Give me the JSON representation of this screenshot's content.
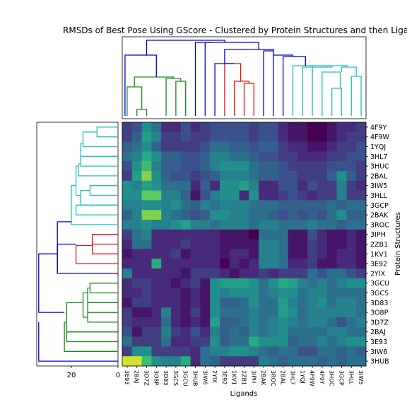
{
  "chart_data": {
    "type": "heatmap",
    "title": "RMSDs of Best Pose Using GScore - Clustered by Protein Structures and then Ligands",
    "xlabel": "Ligands",
    "ylabel": "Protein Structures",
    "x_labels": [
      "3E93",
      "2BAJ",
      "3D7Z",
      "3O8P",
      "3D83",
      "3GCS",
      "3GCU",
      "3HUB",
      "3IW6",
      "2YIX",
      "3E92",
      "1KV1",
      "2ZB1",
      "3IPH",
      "2BAK",
      "3ROC",
      "2BAL",
      "3HL7",
      "1YQJ",
      "4F9W",
      "4F9Y",
      "3HUC",
      "3GCP",
      "3HLL",
      "3IW5"
    ],
    "y_labels": [
      "4F9Y",
      "4F9W",
      "1YQJ",
      "3HL7",
      "3HUC",
      "2BAL",
      "3IW5",
      "3HLL",
      "3GCP",
      "2BAK",
      "3ROC",
      "3IPH",
      "2ZB1",
      "1KV1",
      "3E92",
      "2YIX",
      "3GCU",
      "3GCS",
      "3D83",
      "3O8P",
      "3D7Z",
      "2BAJ",
      "3E93",
      "3IW6",
      "3HUB"
    ],
    "row_dendrogram_axis": {
      "ticks": [
        20,
        0
      ]
    },
    "values": [
      [
        3,
        4,
        8,
        6,
        2,
        2,
        4,
        2,
        3,
        4,
        4,
        4,
        4,
        3,
        4,
        4,
        2,
        1,
        1,
        0,
        0,
        1,
        2,
        2,
        3
      ],
      [
        3,
        5,
        9,
        7,
        3,
        3,
        4,
        3,
        3,
        4,
        4,
        4,
        4,
        3,
        4,
        4,
        2,
        1,
        1,
        0,
        0,
        1,
        2,
        3,
        3
      ],
      [
        5,
        6,
        8,
        5,
        3,
        3,
        3,
        3,
        4,
        6,
        6,
        5,
        5,
        4,
        5,
        5,
        3,
        2,
        2,
        1,
        1,
        2,
        3,
        3,
        4
      ],
      [
        6,
        7,
        10,
        8,
        5,
        5,
        4,
        4,
        5,
        7,
        7,
        6,
        6,
        5,
        4,
        4,
        3,
        3,
        2,
        2,
        2,
        3,
        3,
        4,
        4
      ],
      [
        4,
        8,
        11,
        7,
        5,
        5,
        4,
        4,
        5,
        7,
        8,
        8,
        8,
        6,
        5,
        5,
        4,
        3,
        3,
        3,
        3,
        4,
        4,
        4,
        3
      ],
      [
        3,
        9,
        13,
        8,
        5,
        4,
        4,
        3,
        4,
        5,
        7,
        7,
        7,
        6,
        5,
        5,
        4,
        4,
        3,
        3,
        3,
        5,
        8,
        5,
        3
      ],
      [
        8,
        7,
        9,
        8,
        6,
        6,
        6,
        2,
        5,
        2,
        8,
        8,
        9,
        7,
        2,
        2,
        4,
        4,
        2,
        4,
        3,
        3,
        7,
        3,
        2
      ],
      [
        8,
        8,
        12,
        12,
        7,
        7,
        5,
        1,
        4,
        7,
        8,
        8,
        2,
        8,
        2,
        2,
        3,
        4,
        3,
        2,
        3,
        3,
        7,
        3,
        3
      ],
      [
        7,
        7,
        8,
        8,
        7,
        8,
        6,
        5,
        7,
        6,
        7,
        7,
        7,
        6,
        6,
        6,
        5,
        5,
        5,
        5,
        5,
        6,
        5,
        6,
        6
      ],
      [
        5,
        7,
        13,
        13,
        7,
        6,
        5,
        4,
        5,
        8,
        8,
        7,
        7,
        6,
        6,
        5,
        4,
        5,
        4,
        5,
        4,
        6,
        8,
        5,
        5
      ],
      [
        7,
        7,
        8,
        7,
        7,
        8,
        9,
        7,
        7,
        6,
        7,
        7,
        7,
        6,
        7,
        7,
        6,
        6,
        6,
        7,
        6,
        6,
        5,
        6,
        6
      ],
      [
        3,
        6,
        7,
        2,
        2,
        2,
        2,
        2,
        2,
        2,
        1,
        1,
        1,
        0,
        6,
        6,
        6,
        1,
        1,
        4,
        2,
        1,
        1,
        2,
        1
      ],
      [
        2,
        6,
        6,
        2,
        2,
        2,
        3,
        2,
        2,
        2,
        1,
        1,
        1,
        1,
        7,
        7,
        6,
        1,
        1,
        3,
        2,
        1,
        1,
        2,
        1
      ],
      [
        1,
        2,
        2,
        2,
        2,
        3,
        1,
        2,
        2,
        2,
        1,
        2,
        2,
        1,
        7,
        7,
        6,
        1,
        1,
        3,
        2,
        1,
        2,
        2,
        1
      ],
      [
        2,
        2,
        2,
        10,
        2,
        2,
        2,
        2,
        2,
        2,
        0,
        2,
        1,
        2,
        7,
        7,
        6,
        2,
        2,
        3,
        1,
        1,
        2,
        2,
        1
      ],
      [
        7,
        2,
        2,
        2,
        2,
        2,
        1,
        3,
        3,
        3,
        2,
        1,
        2,
        2,
        3,
        2,
        3,
        3,
        3,
        6,
        4,
        6,
        6,
        4,
        3
      ],
      [
        2,
        3,
        3,
        2,
        2,
        1,
        2,
        3,
        1,
        8,
        9,
        9,
        9,
        8,
        6,
        8,
        10,
        9,
        7,
        6,
        7,
        6,
        7,
        8,
        8
      ],
      [
        2,
        2,
        3,
        2,
        2,
        2,
        1,
        2,
        1,
        8,
        7,
        8,
        8,
        8,
        6,
        7,
        8,
        8,
        6,
        7,
        7,
        6,
        6,
        6,
        6
      ],
      [
        1,
        3,
        3,
        2,
        2,
        2,
        1,
        2,
        1,
        8,
        5,
        5,
        6,
        8,
        6,
        6,
        9,
        7,
        6,
        7,
        8,
        6,
        7,
        7,
        6
      ],
      [
        3,
        1,
        1,
        2,
        7,
        2,
        1,
        3,
        1,
        8,
        6,
        6,
        6,
        7,
        6,
        6,
        9,
        8,
        6,
        7,
        7,
        7,
        7,
        7,
        6
      ],
      [
        3,
        2,
        2,
        2,
        6,
        2,
        1,
        2,
        1,
        9,
        5,
        5,
        6,
        7,
        6,
        7,
        8,
        7,
        6,
        7,
        7,
        6,
        4,
        6,
        7
      ],
      [
        4,
        1,
        3,
        3,
        7,
        3,
        2,
        4,
        2,
        7,
        5,
        6,
        5,
        7,
        6,
        7,
        8,
        6,
        6,
        6,
        6,
        7,
        7,
        6,
        6
      ],
      [
        6,
        3,
        3,
        3,
        6,
        2,
        2,
        3,
        3,
        8,
        5,
        6,
        6,
        10,
        8,
        8,
        8,
        5,
        6,
        6,
        7,
        6,
        7,
        8,
        8
      ],
      [
        3,
        8,
        8,
        3,
        3,
        3,
        3,
        2,
        6,
        7,
        7,
        8,
        8,
        7,
        6,
        5,
        6,
        6,
        4,
        4,
        6,
        6,
        5,
        6,
        5
      ],
      [
        15,
        15,
        11,
        8,
        7,
        7,
        10,
        2,
        6,
        5,
        3,
        3,
        3,
        3,
        7,
        6,
        5,
        6,
        6,
        6,
        5,
        6,
        5,
        6,
        6
      ]
    ],
    "color_range": [
      0,
      16
    ],
    "grid": false
  }
}
